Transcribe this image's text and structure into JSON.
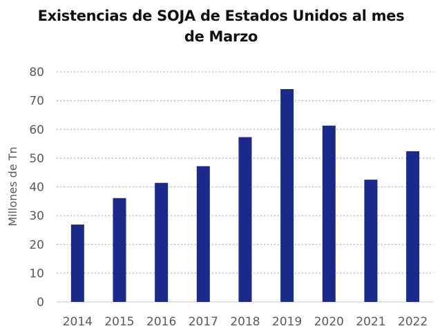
{
  "chart_data": {
    "type": "bar",
    "title": "Existencias de SOJA de Estados Unidos al mes de Marzo",
    "title_lines": [
      "Existencias de SOJA de Estados Unidos al mes",
      "de Marzo"
    ],
    "xlabel": "",
    "ylabel": "Millones de Tn",
    "categories": [
      "2014",
      "2015",
      "2016",
      "2017",
      "2018",
      "2019",
      "2020",
      "2021",
      "2022"
    ],
    "values": [
      26.9,
      36.1,
      41.4,
      47.2,
      57.3,
      74.0,
      61.3,
      42.5,
      52.4
    ],
    "ylim": [
      0,
      80
    ],
    "yticks": [
      0,
      10,
      20,
      30,
      40,
      50,
      60,
      70,
      80
    ],
    "grid": true,
    "legend": "none",
    "colors": {
      "bar": "#1B2A8A",
      "grid": "#BFBFBF",
      "axis": "#D9D9D9",
      "text": "#595959"
    }
  }
}
